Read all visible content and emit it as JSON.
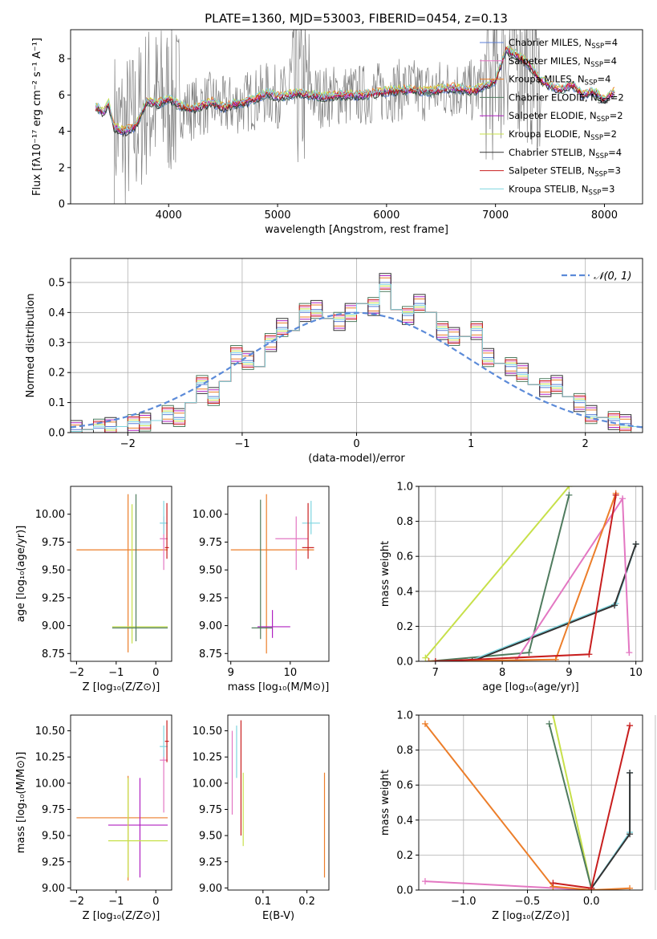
{
  "chart_data": [
    {
      "id": "spectrum",
      "type": "line",
      "title": "PLATE=1360, MJD=53003, FIBERID=0454, z=0.13",
      "xlabel": "wavelength [Angstrom, rest frame]",
      "ylabel": "Flux [fλ10⁻¹⁷ erg cm⁻² s⁻¹ A⁻¹]",
      "xlim": [
        3100,
        8350
      ],
      "ylim": [
        0,
        9.6
      ],
      "xticks": [
        4000,
        5000,
        6000,
        7000,
        8000
      ],
      "yticks": [
        0,
        2,
        4,
        6,
        8
      ],
      "legend": "upper-right",
      "data_series": {
        "x": [
          3350,
          3400,
          3450,
          3500,
          3600,
          3700,
          3800,
          3900,
          4000,
          4100,
          4200,
          4300,
          4400,
          4500,
          4600,
          4700,
          4800,
          4900,
          5000,
          5200,
          5400,
          5600,
          5800,
          6000,
          6200,
          6400,
          6600,
          6800,
          7000,
          7100,
          7200,
          7300,
          7400,
          7500,
          7600,
          7700,
          7800,
          7900,
          8000,
          8100
        ],
        "y": [
          5.3,
          5.0,
          5.5,
          4.2,
          4.0,
          4.3,
          5.7,
          5.5,
          5.8,
          5.4,
          5.2,
          5.4,
          5.6,
          5.3,
          5.5,
          5.6,
          5.8,
          6.1,
          5.9,
          6.1,
          5.9,
          6.0,
          6.0,
          6.2,
          6.3,
          6.2,
          6.4,
          6.2,
          6.8,
          8.5,
          8.2,
          7.7,
          6.9,
          6.5,
          6.3,
          6.6,
          6.0,
          6.2,
          5.7,
          6.2
        ]
      },
      "series": [
        {
          "name": "Chabrier MILES, N<sub>SSP</sub>=4",
          "color": "#5b7fd8"
        },
        {
          "name": "Salpeter MILES, N<sub>SSP</sub>=4",
          "color": "#e377c2"
        },
        {
          "name": "Kroupa MILES, N<sub>SSP</sub>=4",
          "color": "#ec7e2a"
        },
        {
          "name": "Chabrier ELODIE, N<sub>SSP</sub>=2",
          "color": "#4f7b5e"
        },
        {
          "name": "Salpeter ELODIE, N<sub>SSP</sub>=2",
          "color": "#b020c0"
        },
        {
          "name": "Kroupa ELODIE, N<sub>SSP</sub>=2",
          "color": "#c7e04a"
        },
        {
          "name": "Chabrier STELIB, N<sub>SSP</sub>=4",
          "color": "#333333"
        },
        {
          "name": "Salpeter STELIB, N<sub>SSP</sub>=3",
          "color": "#c81e1e"
        },
        {
          "name": "Kroupa STELIB, N<sub>SSP</sub>=3",
          "color": "#7fd6e0"
        }
      ]
    },
    {
      "id": "residuals",
      "type": "step",
      "xlabel": "(data-model)/error",
      "ylabel": "Normed distribution",
      "xlim": [
        -2.5,
        2.5
      ],
      "ylim": [
        0,
        0.58
      ],
      "xticks": [
        -2,
        -1,
        0,
        1,
        2
      ],
      "yticks": [
        0.0,
        0.1,
        0.2,
        0.3,
        0.4,
        0.5
      ],
      "grid": true,
      "legend": "upper-right",
      "reference_label": "𝒩(0, 1)",
      "reference_color": "#5b8ad8",
      "bin_edges": [
        -2.5,
        -2.4,
        -2.3,
        -2.2,
        -2.1,
        -2.0,
        -1.9,
        -1.8,
        -1.7,
        -1.6,
        -1.5,
        -1.4,
        -1.3,
        -1.2,
        -1.1,
        -1.0,
        -0.9,
        -0.8,
        -0.7,
        -0.6,
        -0.5,
        -0.4,
        -0.3,
        -0.2,
        -0.1,
        0.0,
        0.1,
        0.2,
        0.3,
        0.4,
        0.5,
        0.6,
        0.7,
        0.8,
        0.9,
        1.0,
        1.1,
        1.2,
        1.3,
        1.4,
        1.5,
        1.6,
        1.7,
        1.8,
        1.9,
        2.0,
        2.1,
        2.2,
        2.3,
        2.4,
        2.5
      ],
      "hist_values": [
        0.01,
        0.01,
        0.015,
        0.02,
        0.02,
        0.03,
        0.035,
        0.04,
        0.06,
        0.05,
        0.1,
        0.16,
        0.12,
        0.17,
        0.26,
        0.24,
        0.22,
        0.3,
        0.35,
        0.34,
        0.4,
        0.41,
        0.38,
        0.37,
        0.4,
        0.43,
        0.42,
        0.5,
        0.41,
        0.39,
        0.43,
        0.4,
        0.34,
        0.32,
        0.32,
        0.34,
        0.25,
        0.23,
        0.22,
        0.2,
        0.16,
        0.15,
        0.16,
        0.12,
        0.1,
        0.06,
        0.05,
        0.04,
        0.03,
        0.02
      ],
      "offsets": [
        0,
        0.012,
        -0.01,
        0.02,
        -0.015,
        0.008,
        -0.02,
        0.015,
        0.004
      ]
    },
    {
      "id": "age_vs_Z",
      "type": "errorbar",
      "xlabel": "Z [log₁₀(Z/Z⊙)]",
      "ylabel": "age [log₁₀(age/yr)]",
      "xlim": [
        -2.15,
        0.4
      ],
      "ylim": [
        8.68,
        10.25
      ],
      "xticks": [
        -2,
        -1,
        0
      ],
      "yticks": [
        8.75,
        9.0,
        9.25,
        9.5,
        9.75,
        10.0
      ],
      "points": [
        {
          "x": -0.7,
          "xerr": [
            1.3,
            1.0
          ],
          "y": 9.68,
          "yerr": [
            0.92,
            0.5
          ],
          "color": "#ec7e2a"
        },
        {
          "x": -0.6,
          "xerr": [
            0.5,
            0.9
          ],
          "y": 8.99,
          "yerr": [
            0.15,
            1.1
          ],
          "color": "#c7e04a"
        },
        {
          "x": -0.5,
          "xerr": [
            0.6,
            0.8
          ],
          "y": 8.98,
          "yerr": [
            0.12,
            1.2
          ],
          "color": "#4f7b5e"
        },
        {
          "x": 0.2,
          "xerr": [
            0.1,
            0.1
          ],
          "y": 9.78,
          "yerr": [
            0.28,
            0.2
          ],
          "color": "#e377c2"
        },
        {
          "x": 0.2,
          "xerr": [
            0.1,
            0.1
          ],
          "y": 9.92,
          "yerr": [
            0.1,
            0.2
          ],
          "color": "#7fd6e0"
        },
        {
          "x": 0.28,
          "xerr": [
            0.05,
            0.05
          ],
          "y": 9.7,
          "yerr": [
            0.1,
            0.4
          ],
          "color": "#c81e1e"
        }
      ]
    },
    {
      "id": "age_vs_mass",
      "type": "errorbar",
      "xlabel": "mass [log₁₀(M/M⊙)]",
      "xlim": [
        8.95,
        10.65
      ],
      "ylim": [
        8.68,
        10.25
      ],
      "xticks": [
        9,
        10
      ],
      "yticks": [
        8.75,
        9.0,
        9.25,
        9.5,
        9.75,
        10.0
      ],
      "points": [
        {
          "x": 9.6,
          "xerr": [
            0.6,
            0.8
          ],
          "y": 9.68,
          "yerr": [
            0.93,
            0.5
          ],
          "color": "#ec7e2a"
        },
        {
          "x": 9.7,
          "xerr": [
            0.25,
            0.3
          ],
          "y": 8.99,
          "yerr": [
            0.1,
            0.15
          ],
          "color": "#b020c0"
        },
        {
          "x": 9.5,
          "xerr": [
            0.15,
            0.2
          ],
          "y": 8.98,
          "yerr": [
            0.1,
            1.15
          ],
          "color": "#4f7b5e"
        },
        {
          "x": 10.1,
          "xerr": [
            0.35,
            0.2
          ],
          "y": 9.78,
          "yerr": [
            0.28,
            0.2
          ],
          "color": "#e377c2"
        },
        {
          "x": 10.35,
          "xerr": [
            0.15,
            0.15
          ],
          "y": 9.92,
          "yerr": [
            0.1,
            0.2
          ],
          "color": "#7fd6e0"
        },
        {
          "x": 10.3,
          "xerr": [
            0.1,
            0.1
          ],
          "y": 9.7,
          "yerr": [
            0.1,
            0.4
          ],
          "color": "#c81e1e"
        }
      ]
    },
    {
      "id": "mw_vs_age",
      "type": "line",
      "xlabel": "age [log₁₀(age/yr)]",
      "ylabel": "mass weight",
      "xlim": [
        6.75,
        10.1
      ],
      "ylim": [
        0,
        1.0
      ],
      "xticks": [
        7,
        8,
        9,
        10
      ],
      "yticks": [
        0.0,
        0.2,
        0.4,
        0.6,
        0.8,
        1.0
      ],
      "grid": true,
      "series": [
        {
          "color": "#c7e04a",
          "x": [
            6.85,
            9.0
          ],
          "y": [
            0.02,
            1.0
          ]
        },
        {
          "color": "#4f7b5e",
          "x": [
            6.9,
            8.4,
            9.0
          ],
          "y": [
            0.0,
            0.05,
            0.95
          ]
        },
        {
          "color": "#7fd6e0",
          "x": [
            7.5,
            9.7,
            10.0
          ],
          "y": [
            0.0,
            0.33,
            0.67
          ]
        },
        {
          "color": "#333333",
          "x": [
            7.55,
            9.68,
            10.0
          ],
          "y": [
            0.0,
            0.32,
            0.67
          ]
        },
        {
          "color": "#e377c2",
          "x": [
            8.2,
            9.8,
            9.9
          ],
          "y": [
            0.0,
            0.93,
            0.05
          ]
        },
        {
          "color": "#ec7e2a",
          "x": [
            6.9,
            8.8,
            9.7
          ],
          "y": [
            0.0,
            0.01,
            0.96
          ]
        },
        {
          "color": "#c81e1e",
          "x": [
            7.0,
            9.3,
            9.7
          ],
          "y": [
            0.0,
            0.04,
            0.95
          ]
        }
      ]
    },
    {
      "id": "mass_vs_Z",
      "type": "errorbar",
      "xlabel": "Z [log₁₀(Z/Z⊙)]",
      "ylabel": "mass [log₁₀(M/M⊙)]",
      "xlim": [
        -2.15,
        0.4
      ],
      "ylim": [
        8.98,
        10.65
      ],
      "xticks": [
        -2,
        -1,
        0
      ],
      "yticks": [
        9.0,
        9.25,
        9.5,
        9.75,
        10.0,
        10.25,
        10.5
      ],
      "points": [
        {
          "x": -0.7,
          "xerr": [
            1.3,
            1.0
          ],
          "y": 9.67,
          "yerr": [
            0.6,
            0.4
          ],
          "color": "#ec7e2a"
        },
        {
          "x": -0.4,
          "xerr": [
            0.8,
            0.7
          ],
          "y": 9.6,
          "yerr": [
            0.5,
            0.45
          ],
          "color": "#b020c0"
        },
        {
          "x": -0.7,
          "xerr": [
            0.5,
            1.0
          ],
          "y": 9.45,
          "yerr": [
            0.35,
            0.6
          ],
          "color": "#c7e04a"
        },
        {
          "x": 0.2,
          "xerr": [
            0.1,
            0.1
          ],
          "y": 10.22,
          "yerr": [
            0.5,
            0.1
          ],
          "color": "#e377c2"
        },
        {
          "x": 0.2,
          "xerr": [
            0.1,
            0.1
          ],
          "y": 10.35,
          "yerr": [
            0.1,
            0.2
          ],
          "color": "#7fd6e0"
        },
        {
          "x": 0.28,
          "xerr": [
            0.05,
            0.05
          ],
          "y": 10.4,
          "yerr": [
            0.2,
            0.2
          ],
          "color": "#c81e1e"
        }
      ]
    },
    {
      "id": "mass_vs_EBV",
      "type": "errorbar",
      "xlabel": "E(B-V)",
      "xlim": [
        0.02,
        0.25
      ],
      "ylim": [
        8.98,
        10.65
      ],
      "xticks": [
        0.1,
        0.2
      ],
      "yticks": [
        9.0,
        9.25,
        9.5,
        9.75,
        10.0,
        10.25,
        10.5
      ],
      "points": [
        {
          "x": 0.03,
          "y": 10.0,
          "yerr": [
            0.3,
            0.5
          ],
          "color": "#e377c2"
        },
        {
          "x": 0.04,
          "y": 10.25,
          "yerr": [
            0.2,
            0.3
          ],
          "color": "#7fd6e0"
        },
        {
          "x": 0.05,
          "y": 10.0,
          "yerr": [
            0.5,
            0.6
          ],
          "color": "#c81e1e"
        },
        {
          "x": 0.055,
          "y": 9.75,
          "yerr": [
            0.35,
            0.35
          ],
          "color": "#c7e04a"
        },
        {
          "x": 0.24,
          "y": 9.6,
          "yerr": [
            0.5,
            0.5
          ],
          "color": "#ec7e2a"
        }
      ]
    },
    {
      "id": "mw_vs_Z",
      "type": "line",
      "xlabel": "Z [log₁₀(Z/Z⊙)]",
      "ylabel": "mass weight",
      "xlim": [
        -1.35,
        0.4
      ],
      "ylim": [
        0,
        1.0
      ],
      "xticks": [
        -1.0,
        -0.5,
        0.0,
        0.5
      ],
      "yticks": [
        0.0,
        0.2,
        0.4,
        0.6,
        0.8,
        1.0
      ],
      "grid": true,
      "series": [
        {
          "color": "#c7e04a",
          "x": [
            -0.3,
            0.0
          ],
          "y": [
            1.0,
            0.01
          ]
        },
        {
          "color": "#4f7b5e",
          "x": [
            -0.33,
            0.0
          ],
          "y": [
            0.95,
            0.01
          ]
        },
        {
          "color": "#7fd6e0",
          "x": [
            0.0,
            0.3,
            0.3
          ],
          "y": [
            0.01,
            0.33,
            0.67
          ]
        },
        {
          "color": "#333333",
          "x": [
            0.0,
            0.3,
            0.3
          ],
          "y": [
            0.01,
            0.32,
            0.67
          ]
        },
        {
          "color": "#e377c2",
          "x": [
            -1.3,
            0.0
          ],
          "y": [
            0.05,
            0.0
          ]
        },
        {
          "color": "#ec7e2a",
          "x": [
            -1.3,
            -0.3,
            0.0,
            0.3
          ],
          "y": [
            0.95,
            0.02,
            0.0,
            0.01
          ]
        },
        {
          "color": "#c81e1e",
          "x": [
            -0.3,
            0.0,
            0.3
          ],
          "y": [
            0.04,
            0.01,
            0.94
          ]
        }
      ]
    }
  ]
}
